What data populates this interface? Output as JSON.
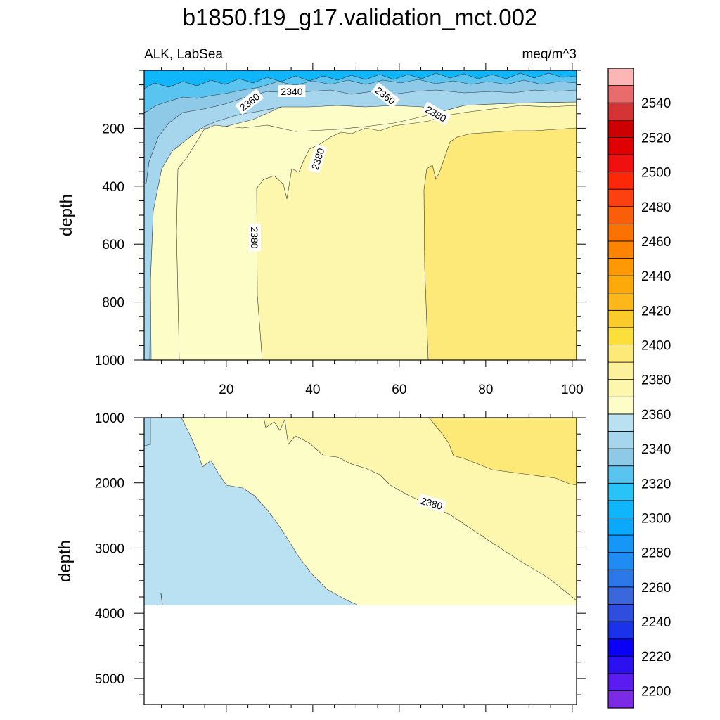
{
  "title": "b1850.f19_g17.validation_mct.002",
  "chart_data": {
    "type": "heatmap",
    "title": "b1850.f19_g17.validation_mct.002",
    "variable": "ALK, LabSea",
    "units": "meq/m^3",
    "ylabel": "depth",
    "xlabel": "",
    "x_range": [
      1,
      101
    ],
    "x_ticks": [
      20,
      40,
      60,
      80,
      100
    ],
    "upper_panel": {
      "ylim": [
        0,
        1000
      ],
      "y_ticks": [
        200,
        400,
        600,
        800,
        1000
      ],
      "contour_labels": [
        "2360",
        "2340",
        "2360",
        "2380",
        "2380",
        "2380"
      ]
    },
    "lower_panel": {
      "ylim": [
        1000,
        5400
      ],
      "y_ticks": [
        1000,
        2000,
        3000,
        4000,
        5000
      ],
      "bottom_depth": 3870,
      "contour_labels": [
        "2380"
      ]
    },
    "colorbar": {
      "min": 2190,
      "max": 2560,
      "step": 10,
      "tick_labels": [
        "2200",
        "2220",
        "2240",
        "2260",
        "2280",
        "2300",
        "2320",
        "2340",
        "2360",
        "2380",
        "2400",
        "2420",
        "2440",
        "2460",
        "2480",
        "2500",
        "2520",
        "2540"
      ],
      "colors": [
        "#7b2be6",
        "#5a1cf0",
        "#2b10f0",
        "#0a00f5",
        "#1a32ea",
        "#2f4ee0",
        "#3a68dc",
        "#2c78e8",
        "#1e8cf2",
        "#1696f7",
        "#0ba8fb",
        "#10b6fb",
        "#28c3f7",
        "#5ac4f0",
        "#8ecae8",
        "#a6d6ee",
        "#b9e1f1",
        "#fdfdc8",
        "#fdf6ad",
        "#fdf09a",
        "#fde978",
        "#fcdf3a",
        "#fbcb2c",
        "#fcb81a",
        "#fda90a",
        "#fe9804",
        "#fc8400",
        "#fb7203",
        "#fb5e08",
        "#fc4010",
        "#fd2808",
        "#f01010",
        "#e00000",
        "#cc0000",
        "#d43434",
        "#e86c6c",
        "#fcb6b6"
      ]
    },
    "regions": {
      "c2350": "#a6d6ee",
      "c2360": "#b9e1f1",
      "c2370": "#fdfdc8",
      "c2380": "#fdf6ad",
      "c2390": "#fdf09a",
      "c2400": "#fde978",
      "surface_dark": "#10b6fb",
      "surface_mid": "#5ac4f0",
      "surface_light": "#8ecae8"
    }
  }
}
